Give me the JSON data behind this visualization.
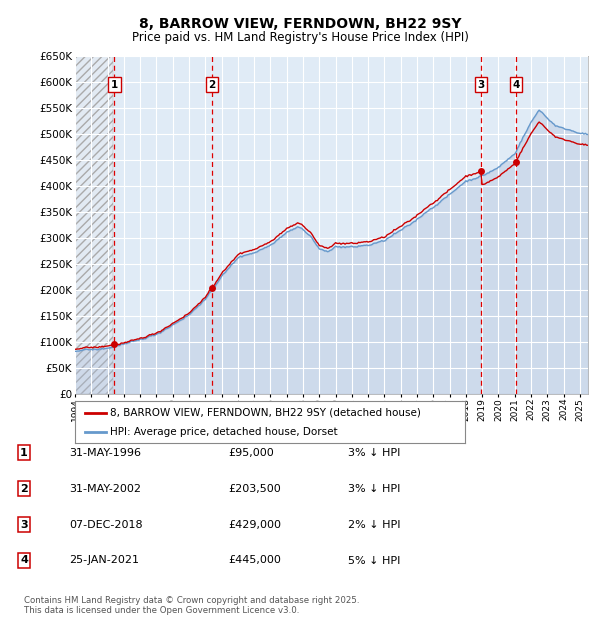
{
  "title": "8, BARROW VIEW, FERNDOWN, BH22 9SY",
  "subtitle": "Price paid vs. HM Land Registry's House Price Index (HPI)",
  "legend_line1": "8, BARROW VIEW, FERNDOWN, BH22 9SY (detached house)",
  "legend_line2": "HPI: Average price, detached house, Dorset",
  "footer": "Contains HM Land Registry data © Crown copyright and database right 2025.\nThis data is licensed under the Open Government Licence v3.0.",
  "transactions": [
    {
      "num": 1,
      "date": "31-MAY-1996",
      "date_val": 1996.416,
      "price": 95000,
      "label": "3% ↓ HPI"
    },
    {
      "num": 2,
      "date": "31-MAY-2002",
      "date_val": 2002.416,
      "price": 203500,
      "label": "3% ↓ HPI"
    },
    {
      "num": 3,
      "date": "07-DEC-2018",
      "date_val": 2018.933,
      "price": 429000,
      "label": "2% ↓ HPI"
    },
    {
      "num": 4,
      "date": "25-JAN-2021",
      "date_val": 2021.069,
      "price": 445000,
      "label": "5% ↓ HPI"
    }
  ],
  "ylim": [
    0,
    650000
  ],
  "ytick_step": 50000,
  "xmin": 1994.0,
  "xmax": 2025.5,
  "price_line_color": "#cc0000",
  "hpi_line_color": "#6699cc",
  "hpi_fill_color": "#ccddf0",
  "vline_color": "#dd0000",
  "box_edge_color": "#cc0000",
  "background_color": "#ffffff",
  "plot_bg_color": "#e8eef8"
}
